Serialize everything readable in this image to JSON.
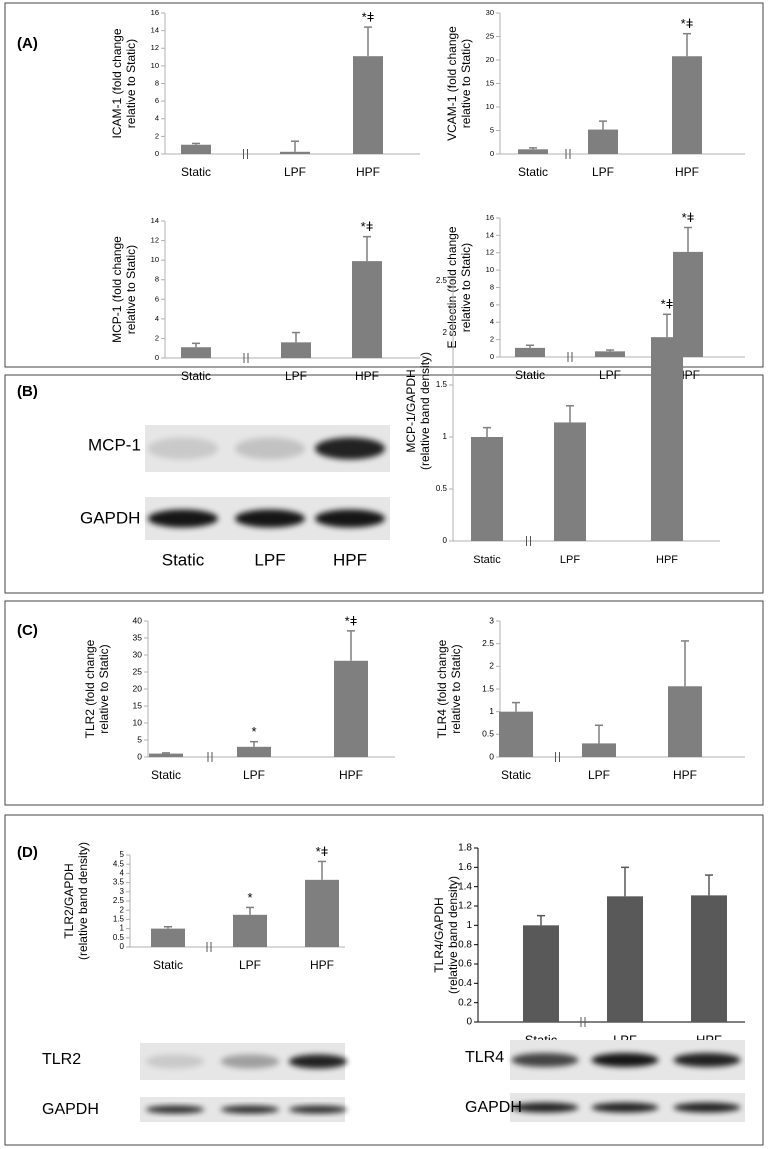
{
  "panel_labels": [
    "(A)",
    "(B)",
    "(C)",
    "(D)"
  ],
  "blots": [
    {
      "rows": [
        "MCP-1",
        "GAPDH"
      ],
      "lanes": [
        "Static",
        "LPF",
        "HPF"
      ]
    },
    {
      "rows": [
        "TLR2",
        "GAPDH"
      ]
    },
    {
      "rows": [
        "TLR4",
        "GAPDH"
      ]
    }
  ],
  "chart_data": [
    {
      "type": "bar",
      "ylabel": [
        "ICAM-1 (fold change",
        "relative to Static)"
      ],
      "categories": [
        "Static",
        "LPF",
        "HPF"
      ],
      "values": [
        1.05,
        0.25,
        11.1
      ],
      "errors": [
        0.15,
        1.2,
        3.3
      ],
      "annotations": [
        null,
        null,
        "*ǂ"
      ],
      "ylim": [
        0,
        16
      ],
      "yticks": [
        0,
        2,
        4,
        6,
        8,
        10,
        12,
        14,
        16
      ],
      "color": "#7f7f7f",
      "axis_break": true
    },
    {
      "type": "bar",
      "ylabel": [
        "VCAM-1 (fold change",
        "relative to Static)"
      ],
      "categories": [
        "Static",
        "LPF",
        "HPF"
      ],
      "values": [
        1.0,
        5.2,
        20.8
      ],
      "errors": [
        0.3,
        1.8,
        4.8
      ],
      "annotations": [
        null,
        null,
        "*ǂ"
      ],
      "ylim": [
        0,
        30
      ],
      "yticks": [
        0,
        5,
        10,
        15,
        20,
        25,
        30
      ],
      "color": "#7f7f7f",
      "axis_break": true
    },
    {
      "type": "bar",
      "ylabel": [
        "MCP-1 (fold change",
        "relative to Static)"
      ],
      "categories": [
        "Static",
        "LPF",
        "HPF"
      ],
      "values": [
        1.1,
        1.6,
        9.9
      ],
      "errors": [
        0.4,
        1.0,
        2.5
      ],
      "annotations": [
        null,
        null,
        "*ǂ"
      ],
      "ylim": [
        0,
        14
      ],
      "yticks": [
        0,
        2,
        4,
        6,
        8,
        10,
        12,
        14
      ],
      "color": "#7f7f7f",
      "axis_break": true
    },
    {
      "type": "bar",
      "ylabel": [
        "E-selectin (fold change",
        "relative to Static)"
      ],
      "categories": [
        "Static",
        "LPF",
        "HPF"
      ],
      "values": [
        1.05,
        0.65,
        12.1
      ],
      "errors": [
        0.3,
        0.15,
        2.8
      ],
      "annotations": [
        null,
        null,
        "*ǂ"
      ],
      "ylim": [
        0,
        16
      ],
      "yticks": [
        0,
        2,
        4,
        6,
        8,
        10,
        12,
        14,
        16
      ],
      "color": "#7f7f7f",
      "axis_break": true
    },
    {
      "type": "bar",
      "ylabel": [
        "MCP-1/GAPDH",
        "(relative band density)"
      ],
      "categories": [
        "Static",
        "LPF",
        "HPF"
      ],
      "values": [
        1.0,
        1.14,
        1.96
      ],
      "errors": [
        0.09,
        0.16,
        0.22
      ],
      "annotations": [
        null,
        null,
        "*ǂ"
      ],
      "ylim": [
        0,
        2.5
      ],
      "yticks": [
        0,
        0.5,
        1,
        1.5,
        2,
        2.5
      ],
      "color": "#7f7f7f",
      "axis_break": true
    },
    {
      "type": "bar",
      "ylabel": [
        "TLR2 (fold change",
        "relative to Static)"
      ],
      "categories": [
        "Static",
        "LPF",
        "HPF"
      ],
      "values": [
        1.0,
        3.0,
        28.3
      ],
      "errors": [
        0.2,
        1.5,
        8.8
      ],
      "annotations": [
        null,
        "*",
        "*ǂ"
      ],
      "ylim": [
        0,
        40
      ],
      "yticks": [
        0,
        5,
        10,
        15,
        20,
        25,
        30,
        35,
        40
      ],
      "color": "#7f7f7f",
      "axis_break": true
    },
    {
      "type": "bar",
      "ylabel": [
        "TLR4 (fold change",
        "relative to Static)"
      ],
      "categories": [
        "Static",
        "LPF",
        "HPF"
      ],
      "values": [
        1.0,
        0.3,
        1.56
      ],
      "errors": [
        0.2,
        0.4,
        1.0
      ],
      "annotations": [
        null,
        null,
        null
      ],
      "ylim": [
        0,
        3
      ],
      "yticks": [
        0,
        0.5,
        1,
        1.5,
        2,
        2.5,
        3
      ],
      "color": "#7f7f7f",
      "axis_break": true
    },
    {
      "type": "bar",
      "ylabel": [
        "TLR2/GAPDH",
        "(relative band density)"
      ],
      "categories": [
        "Static",
        "LPF",
        "HPF"
      ],
      "values": [
        1.0,
        1.75,
        3.65
      ],
      "errors": [
        0.1,
        0.4,
        1.0
      ],
      "annotations": [
        null,
        "*",
        "*ǂ"
      ],
      "ylim": [
        0,
        5
      ],
      "yticks": [
        0,
        0.5,
        1,
        1.5,
        2,
        2.5,
        3,
        3.5,
        4,
        4.5,
        5
      ],
      "color": "#7f7f7f",
      "axis_break": true
    },
    {
      "type": "bar",
      "ylabel": [
        "TLR4/GAPDH",
        "(relative band density)"
      ],
      "categories": [
        "Static",
        "LPF",
        "HPF"
      ],
      "values": [
        1.0,
        1.3,
        1.31
      ],
      "errors": [
        0.1,
        0.3,
        0.21
      ],
      "annotations": [
        null,
        null,
        null
      ],
      "ylim": [
        0,
        1.8
      ],
      "yticks": [
        0,
        0.2,
        0.4,
        0.6,
        0.8,
        1,
        1.2,
        1.4,
        1.6,
        1.8
      ],
      "color": "#595959",
      "axis_break": true
    }
  ]
}
